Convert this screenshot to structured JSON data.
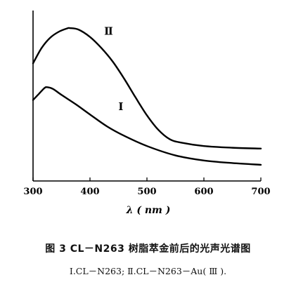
{
  "chart_data": {
    "type": "line",
    "x_unit_label": "λ ( nm )",
    "xlim": [
      300,
      700
    ],
    "x_ticks": [
      "300",
      "400",
      "500",
      "600",
      "700"
    ],
    "series": [
      {
        "name": "Ⅱ",
        "x": [
          300,
          315,
          330,
          345,
          360,
          365,
          380,
          400,
          420,
          440,
          460,
          480,
          500,
          520,
          540,
          560,
          600,
          650,
          700
        ],
        "y": [
          0.69,
          0.78,
          0.84,
          0.875,
          0.895,
          0.897,
          0.888,
          0.845,
          0.78,
          0.7,
          0.6,
          0.49,
          0.385,
          0.3,
          0.245,
          0.225,
          0.205,
          0.195,
          0.19
        ]
      },
      {
        "name": "Ⅰ",
        "x": [
          300,
          310,
          320,
          325,
          335,
          350,
          375,
          400,
          430,
          460,
          500,
          550,
          600,
          650,
          700
        ],
        "y": [
          0.475,
          0.51,
          0.545,
          0.55,
          0.54,
          0.505,
          0.45,
          0.39,
          0.32,
          0.265,
          0.205,
          0.15,
          0.12,
          0.105,
          0.095
        ]
      }
    ]
  },
  "caption": {
    "title": "图 3   CL－N263 树脂萃金前后的光声光谱图",
    "legend": "Ⅰ.CL－N263;  Ⅱ.CL－N263－Au( Ⅲ )."
  }
}
